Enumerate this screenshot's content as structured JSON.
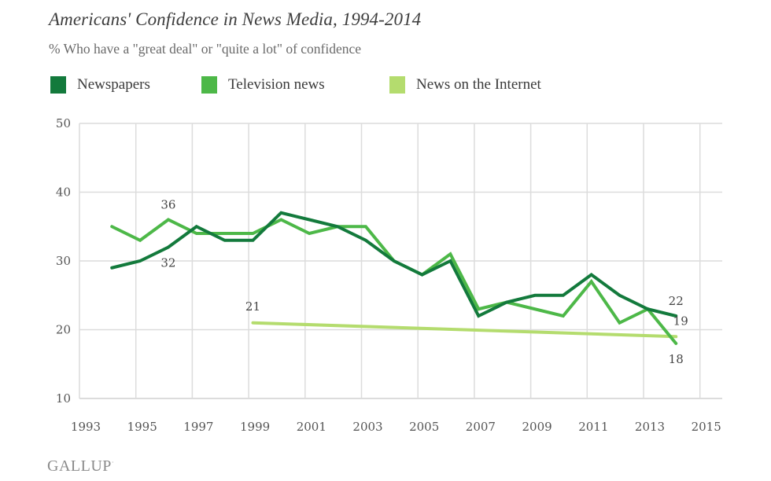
{
  "chart_data": {
    "type": "line",
    "title": "Americans' Confidence in News Media, 1994-2014",
    "subtitle": "% Who have a \"great deal\" or \"quite a lot\" of confidence",
    "xlabel": "",
    "ylabel": "",
    "xlim": [
      1993,
      2015.9
    ],
    "ylim": [
      10,
      50
    ],
    "grid": true,
    "legend_position": "top-left",
    "x_ticks": [
      "1993",
      "1995",
      "1997",
      "1999",
      "2001",
      "2003",
      "2005",
      "2007",
      "2009",
      "2011",
      "2013",
      "2015"
    ],
    "y_ticks": [
      "50",
      "40",
      "30",
      "20",
      "10"
    ],
    "series": [
      {
        "name": "Newspapers",
        "color": "#137a3c",
        "x": [
          1994,
          1995,
          1996,
          1997,
          1998,
          1999,
          2000,
          2001,
          2002,
          2003,
          2004,
          2005,
          2006,
          2007,
          2008,
          2009,
          2010,
          2011,
          2012,
          2013,
          2014
        ],
        "values": [
          29,
          30,
          32,
          35,
          33,
          33,
          37,
          36,
          35,
          33,
          30,
          28,
          30,
          22,
          24,
          25,
          25,
          28,
          25,
          23,
          22
        ]
      },
      {
        "name": "Television news",
        "color": "#4db848",
        "x": [
          1994,
          1995,
          1996,
          1997,
          1998,
          1999,
          2000,
          2001,
          2002,
          2003,
          2004,
          2005,
          2006,
          2007,
          2008,
          2009,
          2010,
          2011,
          2012,
          2013,
          2014
        ],
        "values": [
          35,
          33,
          36,
          34,
          34,
          34,
          36,
          34,
          35,
          35,
          30,
          28,
          31,
          23,
          24,
          23,
          22,
          27,
          21,
          23,
          18
        ]
      },
      {
        "name": "News on the Internet",
        "color": "#b4dc6e",
        "x": [
          1999,
          2014
        ],
        "values": [
          21,
          19
        ]
      }
    ],
    "annotations": [
      {
        "text": "36",
        "series": "Television news",
        "x": 1996,
        "y": 36,
        "position": "above"
      },
      {
        "text": "32",
        "series": "Newspapers",
        "x": 1996,
        "y": 32,
        "position": "below"
      },
      {
        "text": "21",
        "series": "News on the Internet",
        "x": 1999,
        "y": 21,
        "position": "above"
      },
      {
        "text": "22",
        "series": "Newspapers",
        "x": 2014,
        "y": 22,
        "position": "above"
      },
      {
        "text": "19",
        "series": "News on the Internet",
        "x": 2014,
        "y": 19,
        "position": "right"
      },
      {
        "text": "18",
        "series": "Television news",
        "x": 2014,
        "y": 18,
        "position": "below"
      }
    ]
  },
  "legend": [
    {
      "label": "Newspapers",
      "color": "#137a3c"
    },
    {
      "label": "Television news",
      "color": "#4db848"
    },
    {
      "label": "News on the Internet",
      "color": "#b4dc6e"
    }
  ],
  "colors": {
    "grid": "#dcdcdc",
    "tick_text": "#555555"
  },
  "source_logo": "GALLUP"
}
